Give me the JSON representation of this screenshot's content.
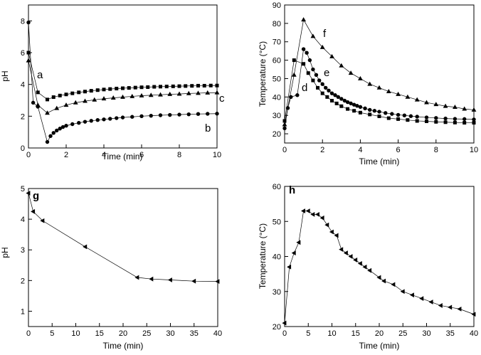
{
  "chart_data": [
    {
      "id": "top-left",
      "type": "line",
      "xlabel": "Time (min)",
      "ylabel": "pH",
      "xlim": [
        0,
        10
      ],
      "ylim": [
        0,
        9
      ],
      "xticks": [
        0,
        2,
        4,
        6,
        8,
        10
      ],
      "yticks": [
        0,
        2,
        4,
        6,
        8
      ],
      "series": [
        {
          "name": "a",
          "marker": "square",
          "x": [
            0,
            0.5,
            1,
            1.33,
            1.67,
            2,
            2.33,
            2.67,
            3,
            3.33,
            3.67,
            4,
            4.33,
            4.67,
            5,
            5.33,
            5.67,
            6,
            6.33,
            6.67,
            7,
            7.33,
            7.67,
            8,
            8.33,
            8.67,
            9,
            9.33,
            9.67,
            10
          ],
          "y": [
            6.0,
            3.5,
            3.05,
            3.2,
            3.3,
            3.37,
            3.44,
            3.5,
            3.55,
            3.6,
            3.64,
            3.68,
            3.71,
            3.74,
            3.76,
            3.78,
            3.8,
            3.82,
            3.83,
            3.85,
            3.86,
            3.87,
            3.88,
            3.89,
            3.9,
            3.91,
            3.92,
            3.92,
            3.93,
            3.93
          ]
        },
        {
          "name": "b",
          "marker": "circle",
          "x": [
            0,
            0.25,
            0.5,
            1,
            1.17,
            1.33,
            1.5,
            1.67,
            1.83,
            2,
            2.33,
            2.67,
            3,
            3.33,
            3.67,
            4,
            4.33,
            4.67,
            5,
            5.5,
            6,
            6.5,
            7,
            7.5,
            8,
            8.5,
            9,
            9.5,
            10
          ],
          "y": [
            7.9,
            2.85,
            2.6,
            0.38,
            0.75,
            0.95,
            1.1,
            1.22,
            1.32,
            1.4,
            1.5,
            1.58,
            1.65,
            1.71,
            1.76,
            1.8,
            1.84,
            1.88,
            1.92,
            1.96,
            2.0,
            2.03,
            2.06,
            2.08,
            2.1,
            2.12,
            2.14,
            2.15,
            2.16
          ]
        },
        {
          "name": "c",
          "marker": "triangle-up",
          "x": [
            0,
            0.5,
            1,
            1.5,
            2,
            2.5,
            3,
            3.5,
            4,
            4.5,
            5,
            5.5,
            6,
            6.5,
            7,
            7.5,
            8,
            8.5,
            9,
            9.5,
            10
          ],
          "y": [
            5.5,
            2.7,
            2.2,
            2.5,
            2.7,
            2.85,
            2.95,
            3.03,
            3.1,
            3.15,
            3.2,
            3.25,
            3.29,
            3.32,
            3.35,
            3.38,
            3.4,
            3.43,
            3.45,
            3.47,
            3.48
          ]
        }
      ]
    },
    {
      "id": "top-right",
      "type": "line",
      "xlabel": "Time (min)",
      "ylabel": "Temperature (°C)",
      "xlim": [
        0,
        10
      ],
      "ylim": [
        15,
        90
      ],
      "xticks": [
        0,
        2,
        4,
        6,
        8,
        10
      ],
      "yticks": [
        20,
        30,
        40,
        50,
        60,
        70,
        80,
        90
      ],
      "series": [
        {
          "name": "d",
          "marker": "square",
          "x": [
            0,
            0.5,
            1,
            1.25,
            1.5,
            1.75,
            2,
            2.25,
            2.5,
            2.75,
            3,
            3.33,
            3.67,
            4,
            4.5,
            5,
            5.5,
            6,
            6.5,
            7,
            7.5,
            8,
            8.5,
            9,
            9.5,
            10
          ],
          "y": [
            27,
            60,
            58,
            53,
            49,
            45,
            42,
            40,
            38,
            36.5,
            35,
            33.5,
            32.5,
            31.5,
            30.5,
            29.5,
            28.5,
            28,
            27.5,
            27,
            26.8,
            26.5,
            26.3,
            26.1,
            26,
            26
          ]
        },
        {
          "name": "e",
          "marker": "circle",
          "x": [
            0,
            0.17,
            0.33,
            0.67,
            1,
            1.17,
            1.33,
            1.5,
            1.67,
            1.83,
            2,
            2.17,
            2.33,
            2.5,
            2.67,
            2.83,
            3,
            3.17,
            3.33,
            3.5,
            3.67,
            3.83,
            4,
            4.25,
            4.5,
            4.75,
            5,
            5.33,
            5.67,
            6,
            6.33,
            6.67,
            7,
            7.5,
            8,
            8.5,
            9,
            9.5,
            10
          ],
          "y": [
            23,
            34,
            40,
            41,
            66,
            64,
            60,
            55,
            52,
            49,
            47,
            45,
            43.5,
            42,
            41,
            40,
            39,
            38,
            37.2,
            36.5,
            35.8,
            35.2,
            34.6,
            33.8,
            33,
            32.5,
            32,
            31.3,
            30.8,
            30.3,
            30,
            29.6,
            29.3,
            28.9,
            28.6,
            28.3,
            28.1,
            28,
            27.8
          ]
        },
        {
          "name": "f",
          "marker": "triangle-up",
          "x": [
            0,
            0.5,
            1,
            1.5,
            2,
            2.5,
            3,
            3.5,
            4,
            4.5,
            5,
            5.5,
            6,
            6.5,
            7,
            7.5,
            8,
            8.5,
            9,
            9.5,
            10
          ],
          "y": [
            25,
            52,
            82,
            73,
            67,
            62,
            57,
            53,
            50,
            47,
            45,
            43,
            41.5,
            40,
            38.5,
            37,
            36,
            35,
            34.5,
            33.5,
            33
          ]
        }
      ]
    },
    {
      "id": "bottom-left",
      "type": "line",
      "xlabel": "Time (min)",
      "ylabel": "pH",
      "xlim": [
        0,
        40
      ],
      "ylim": [
        0.5,
        5
      ],
      "xticks": [
        0,
        5,
        10,
        15,
        20,
        25,
        30,
        35,
        40
      ],
      "yticks": [
        1,
        2,
        3,
        4,
        5
      ],
      "series": [
        {
          "name": "",
          "marker": "triangle-left",
          "x": [
            0,
            1,
            3,
            12,
            23,
            26,
            30,
            35,
            40
          ],
          "y": [
            4.85,
            4.25,
            3.95,
            3.1,
            2.1,
            2.05,
            2.02,
            1.98,
            1.97
          ]
        }
      ]
    },
    {
      "id": "bottom-right",
      "type": "line",
      "xlabel": "Time (min)",
      "ylabel": "Temperature (°C)",
      "xlim": [
        0,
        40
      ],
      "ylim": [
        20,
        60
      ],
      "xticks": [
        0,
        5,
        10,
        15,
        20,
        25,
        30,
        35,
        40
      ],
      "yticks": [
        20,
        30,
        40,
        50,
        60
      ],
      "series": [
        {
          "name": "",
          "marker": "triangle-left",
          "x": [
            0,
            1,
            2,
            3,
            4,
            5,
            6,
            7,
            8,
            9,
            10,
            11,
            12,
            13,
            14,
            15,
            16,
            17,
            18,
            20,
            21,
            23,
            25,
            27,
            29,
            31,
            33,
            35,
            37,
            40
          ],
          "y": [
            21,
            37,
            41,
            44,
            53,
            53,
            52,
            52,
            51,
            49,
            47,
            46,
            42,
            41,
            40,
            39,
            38,
            37,
            36,
            34,
            33,
            32,
            30,
            29,
            28,
            27,
            26,
            25.5,
            25,
            23.5
          ]
        }
      ]
    }
  ],
  "annotations": {
    "top_left": {
      "a": "a",
      "b": "b",
      "c": "c"
    },
    "top_right": {
      "d": "d",
      "e": "e",
      "f": "f"
    },
    "bottom_left": {
      "g": "g"
    },
    "bottom_right": {
      "h": "h"
    }
  }
}
